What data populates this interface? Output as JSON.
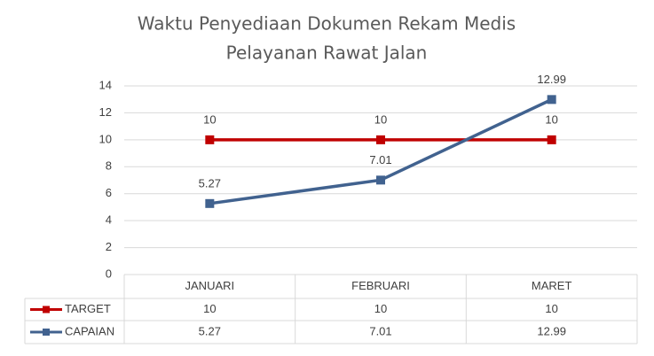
{
  "chart_data": {
    "type": "line",
    "title": [
      "Waktu Penyediaan Dokumen Rekam Medis",
      "Pelayanan Rawat Jalan"
    ],
    "categories": [
      "JANUARI",
      "FEBRUARI",
      "MARET"
    ],
    "series": [
      {
        "name": "TARGET",
        "color": "#c00000",
        "values": [
          10,
          10,
          10
        ]
      },
      {
        "name": "CAPAIAN",
        "color": "#41628f",
        "values": [
          5.27,
          7.01,
          12.99
        ]
      }
    ],
    "ylim": [
      0,
      14
    ],
    "yticks": [
      0,
      2,
      4,
      6,
      8,
      10,
      12,
      14
    ],
    "grid": true,
    "data_table": true
  }
}
